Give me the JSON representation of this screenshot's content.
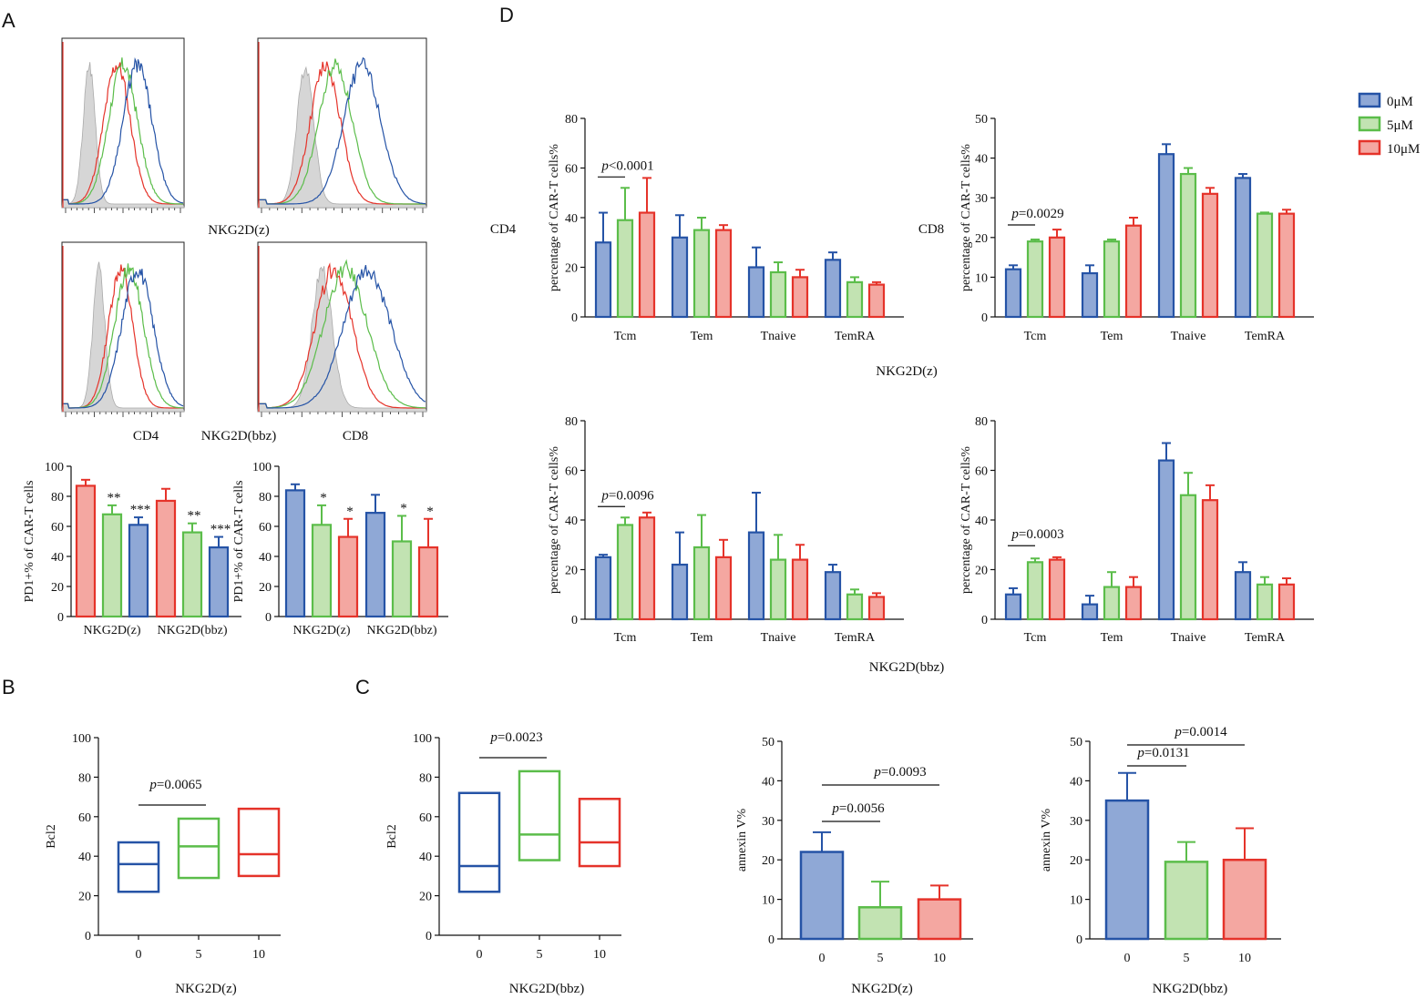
{
  "colors": {
    "blue": "#2553a6",
    "blue_fill": "#8fa8d6",
    "green": "#5bbd4a",
    "green_fill": "#c2e3b2",
    "red": "#e5332a",
    "red_fill": "#f4a7a1",
    "gray_fill": "#d6d6d6"
  },
  "panel_labels": {
    "A": "A",
    "B": "B",
    "C": "C",
    "D": "D"
  },
  "legend": [
    {
      "label": "0μM",
      "color": "blue"
    },
    {
      "label": "5μM",
      "color": "green"
    },
    {
      "label": "10μM",
      "color": "red"
    }
  ],
  "flow": {
    "label_row1": "NKG2D(z)",
    "label_cd4": "CD4",
    "label_mid": "NKG2D(bbz)",
    "label_cd8": "CD8"
  },
  "chart_data": [
    {
      "id": "A1",
      "type": "bar",
      "ylabel": "PD1+%  of CAR-T cells",
      "ylim": [
        0,
        100
      ],
      "yticks": [
        0,
        20,
        40,
        60,
        80,
        100
      ],
      "categories": [
        "NKG2D(z)",
        "NKG2D(bbz)"
      ],
      "series": [
        {
          "name": "bar1",
          "color": "red",
          "values": [
            87,
            77
          ],
          "errors": [
            4,
            8
          ]
        },
        {
          "name": "bar2",
          "color": "green",
          "values": [
            68,
            56
          ],
          "errors": [
            6,
            6
          ]
        },
        {
          "name": "bar3",
          "color": "blue",
          "values": [
            61,
            46
          ],
          "errors": [
            5,
            7
          ]
        }
      ],
      "annotations": [
        [
          "",
          "**",
          "***"
        ],
        [
          "",
          "**",
          "***"
        ]
      ]
    },
    {
      "id": "A2",
      "type": "bar",
      "ylabel": "PD1+%  of CAR-T cells",
      "ylim": [
        0,
        100
      ],
      "yticks": [
        0,
        20,
        40,
        60,
        80,
        100
      ],
      "categories": [
        "NKG2D(z)",
        "NKG2D(bbz)"
      ],
      "series": [
        {
          "name": "bar1",
          "color": "blue",
          "values": [
            84,
            69
          ],
          "errors": [
            4,
            12
          ]
        },
        {
          "name": "bar2",
          "color": "green",
          "values": [
            61,
            50
          ],
          "errors": [
            13,
            17
          ]
        },
        {
          "name": "bar3",
          "color": "red",
          "values": [
            53,
            46
          ],
          "errors": [
            12,
            19
          ]
        }
      ],
      "annotations": [
        [
          "",
          "*",
          "*"
        ],
        [
          "",
          "*",
          "*"
        ]
      ]
    },
    {
      "id": "B",
      "type": "box",
      "ylabel": "Bcl2",
      "xlabel": "NKG2D(z)",
      "ylim": [
        0,
        100
      ],
      "yticks": [
        0,
        20,
        40,
        60,
        80,
        100
      ],
      "categories": [
        "0",
        "5",
        "10"
      ],
      "boxes": [
        {
          "min": 22,
          "median": 36,
          "max": 47,
          "color": "blue"
        },
        {
          "min": 29,
          "median": 45,
          "max": 59,
          "color": "green"
        },
        {
          "min": 30,
          "median": 41,
          "max": 64,
          "color": "red"
        }
      ],
      "significance": [
        {
          "from": 0,
          "to": 1,
          "label": "=0.0065"
        }
      ]
    },
    {
      "id": "C1",
      "type": "box",
      "ylabel": "Bcl2",
      "xlabel": "NKG2D(bbz)",
      "ylim": [
        0,
        100
      ],
      "yticks": [
        0,
        20,
        40,
        60,
        80,
        100
      ],
      "categories": [
        "0",
        "5",
        "10"
      ],
      "boxes": [
        {
          "min": 22,
          "median": 35,
          "max": 72,
          "color": "blue"
        },
        {
          "min": 38,
          "median": 51,
          "max": 83,
          "color": "green"
        },
        {
          "min": 35,
          "median": 47,
          "max": 69,
          "color": "red"
        }
      ],
      "significance": [
        {
          "from": 0,
          "to": 1,
          "label": "=0.0023"
        }
      ]
    },
    {
      "id": "C2",
      "type": "bar",
      "ylabel": "annexin V%",
      "xlabel": "NKG2D(z)",
      "ylim": [
        0,
        50
      ],
      "yticks": [
        0,
        10,
        20,
        30,
        40,
        50
      ],
      "categories": [
        "0",
        "5",
        "10"
      ],
      "values": [
        22,
        8,
        10
      ],
      "errors": [
        5,
        6.5,
        3.5
      ],
      "colors": [
        "blue",
        "green",
        "red"
      ],
      "significance": [
        {
          "from": 0,
          "to": 1,
          "label": "=0.0056"
        },
        {
          "from": 0,
          "to": 2,
          "label": "=0.0093"
        }
      ]
    },
    {
      "id": "C3",
      "type": "bar",
      "ylabel": "annexin V%",
      "xlabel": "NKG2D(bbz)",
      "ylim": [
        0,
        50
      ],
      "yticks": [
        0,
        10,
        20,
        30,
        40,
        50
      ],
      "categories": [
        "0",
        "5",
        "10"
      ],
      "values": [
        35,
        19.5,
        20
      ],
      "errors": [
        7,
        5,
        8
      ],
      "colors": [
        "blue",
        "green",
        "red"
      ],
      "significance": [
        {
          "from": 0,
          "to": 1,
          "label": "=0.0131"
        },
        {
          "from": 0,
          "to": 2,
          "label": "=0.0014"
        }
      ]
    },
    {
      "id": "D1",
      "type": "bar",
      "ylabel": "percentage of CAR-T cells%",
      "ylim": [
        0,
        80
      ],
      "yticks": [
        0,
        20,
        40,
        60,
        80
      ],
      "categories": [
        "Tcm",
        "Tem",
        "Tnaive",
        "TemRA"
      ],
      "series": [
        {
          "name": "0μM",
          "color": "blue",
          "values": [
            30,
            32,
            20,
            23
          ],
          "errors": [
            12,
            9,
            8,
            3
          ]
        },
        {
          "name": "5μM",
          "color": "green",
          "values": [
            39,
            35,
            18,
            14
          ],
          "errors": [
            13,
            5,
            4,
            2
          ]
        },
        {
          "name": "10μM",
          "color": "red",
          "values": [
            42,
            35,
            16,
            13
          ],
          "errors": [
            14,
            2,
            3,
            1
          ]
        }
      ],
      "significance": {
        "label": "<0.0001"
      }
    },
    {
      "id": "D2",
      "type": "bar",
      "ylabel": "percentage of CAR-T cells%",
      "ylim": [
        0,
        50
      ],
      "yticks": [
        0,
        10,
        20,
        30,
        40,
        50
      ],
      "categories": [
        "Tcm",
        "Tem",
        "Tnaive",
        "TemRA"
      ],
      "series": [
        {
          "name": "0μM",
          "color": "blue",
          "values": [
            12,
            11,
            41,
            35
          ],
          "errors": [
            1,
            2,
            2.5,
            1
          ]
        },
        {
          "name": "5μM",
          "color": "green",
          "values": [
            19,
            19,
            36,
            26
          ],
          "errors": [
            0.5,
            0.5,
            1.5,
            0.3
          ]
        },
        {
          "name": "10μM",
          "color": "red",
          "values": [
            20,
            23,
            31,
            26
          ],
          "errors": [
            2,
            2,
            1.5,
            1
          ]
        }
      ],
      "significance": {
        "label": "=0.0029"
      }
    },
    {
      "id": "D3",
      "type": "bar",
      "ylabel": "percentage of CAR-T cells%",
      "ylim": [
        0,
        80
      ],
      "yticks": [
        0,
        20,
        40,
        60,
        80
      ],
      "categories": [
        "Tcm",
        "Tem",
        "Tnaive",
        "TemRA"
      ],
      "series": [
        {
          "name": "0μM",
          "color": "blue",
          "values": [
            25,
            22,
            35,
            19
          ],
          "errors": [
            1,
            13,
            16,
            3
          ]
        },
        {
          "name": "5μM",
          "color": "green",
          "values": [
            38,
            29,
            24,
            10
          ],
          "errors": [
            3,
            13,
            10,
            2
          ]
        },
        {
          "name": "10μM",
          "color": "red",
          "values": [
            41,
            25,
            24,
            9
          ],
          "errors": [
            2,
            7,
            6,
            1.5
          ]
        }
      ],
      "significance": {
        "label": "=0.0096"
      }
    },
    {
      "id": "D4",
      "type": "bar",
      "ylabel": "percentage of CAR-T cells%",
      "ylim": [
        0,
        80
      ],
      "yticks": [
        0,
        20,
        40,
        60,
        80
      ],
      "categories": [
        "Tcm",
        "Tem",
        "Tnaive",
        "TemRA"
      ],
      "series": [
        {
          "name": "0μM",
          "color": "blue",
          "values": [
            10,
            6,
            64,
            19
          ],
          "errors": [
            2.5,
            3.5,
            7,
            4
          ]
        },
        {
          "name": "5μM",
          "color": "green",
          "values": [
            23,
            13,
            50,
            14
          ],
          "errors": [
            1.5,
            6,
            9,
            3
          ]
        },
        {
          "name": "10μM",
          "color": "red",
          "values": [
            24,
            13,
            48,
            14
          ],
          "errors": [
            1,
            4,
            6,
            2.5
          ]
        }
      ],
      "significance": {
        "label": "=0.0003"
      }
    }
  ],
  "row_labels": {
    "D_left_top": "CD4",
    "D_left_mid": "CD8",
    "D_xlabel_top": "NKG2D(z)",
    "D_xlabel_bottom": "NKG2D(bbz)"
  },
  "p_prefix": "p"
}
